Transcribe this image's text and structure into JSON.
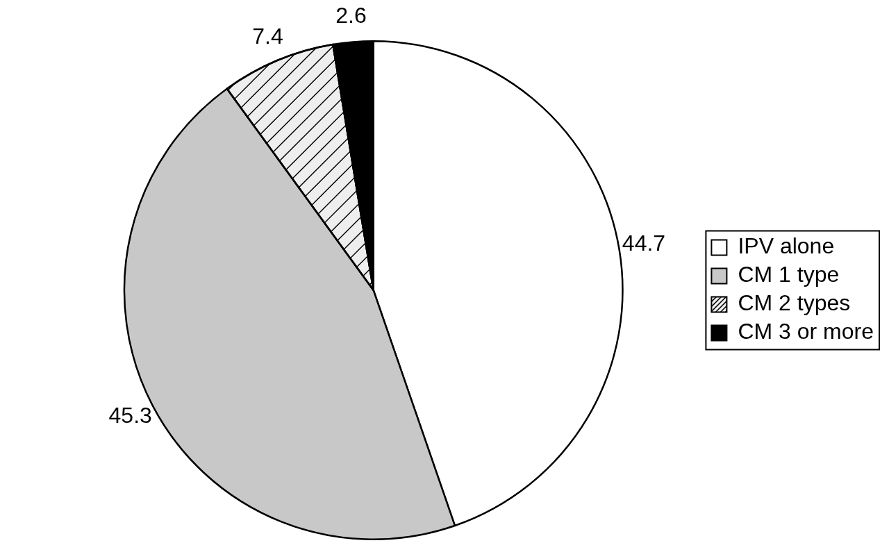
{
  "chart_data": {
    "type": "pie",
    "categories": [
      "IPV alone",
      "CM 1 type",
      "CM 2 types",
      "CM 3 or more"
    ],
    "values": [
      44.7,
      45.3,
      7.4,
      2.6
    ],
    "colors": [
      "#ffffff",
      "#c8c8c8",
      "#eeeeee",
      "#000000"
    ],
    "data_labels": true,
    "legend": "right"
  }
}
